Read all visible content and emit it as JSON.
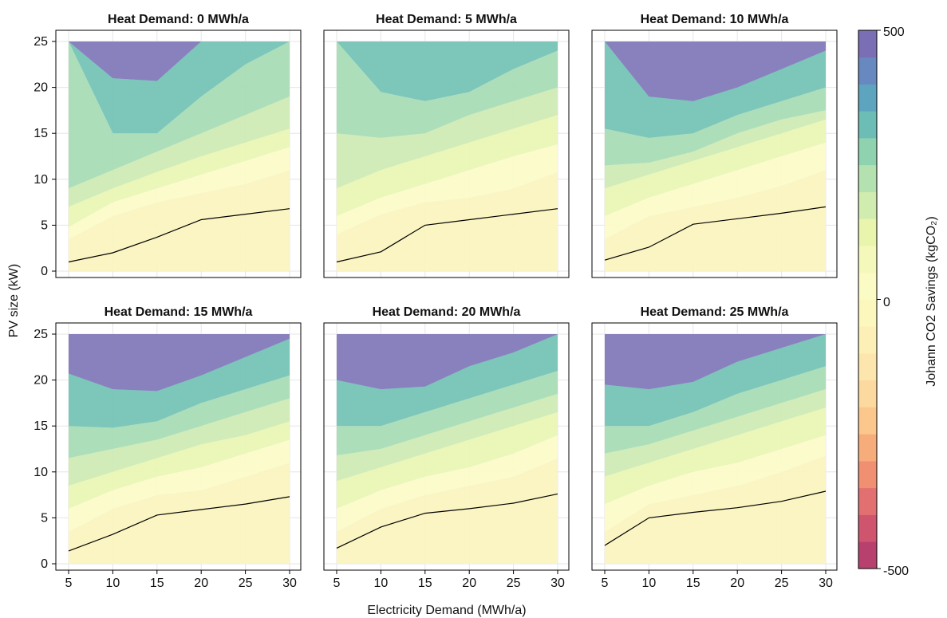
{
  "chart_data": {
    "type": "contour",
    "xlabel": "Electricity Demand (MWh/a)",
    "ylabel": "PV size (kW)",
    "x_ticks": [
      5,
      10,
      15,
      20,
      25,
      30
    ],
    "y_ticks": [
      0,
      5,
      10,
      15,
      20,
      25
    ],
    "xlim": [
      5,
      30
    ],
    "ylim": [
      0,
      25
    ],
    "grid": true,
    "colorbar": {
      "label": "Johann CO2 Savings (kgCO₂)",
      "range": [
        -500,
        500
      ],
      "levels": 20,
      "ticks": [
        "500",
        "0",
        "-500"
      ],
      "colors": [
        "#b8406e",
        "#cf556f",
        "#e27070",
        "#f08f72",
        "#f7ad7b",
        "#fbc78c",
        "#fcd99e",
        "#fde6ad",
        "#fdf0b7",
        "#fcf7bd",
        "#fbfbc6",
        "#f5f8bb",
        "#e9f4ad",
        "#d1ecaf",
        "#b4e1b0",
        "#8fd2b0",
        "#6cbdb5",
        "#5da4be",
        "#6888c0",
        "#7a6fb4"
      ]
    },
    "panels": [
      {
        "title": "Heat Demand: 0 MWh/a",
        "x": [
          5,
          10,
          15,
          20,
          25,
          30
        ],
        "break_even_line": [
          1.0,
          2.0,
          3.7,
          5.6,
          6.2,
          6.8
        ],
        "contours": [
          {
            "level": 50,
            "y": [
              3.5,
              6.0,
              7.5,
              8.5,
              9.5,
              11.0
            ]
          },
          {
            "level": 100,
            "y": [
              4.8,
              7.5,
              9.0,
              10.5,
              12.0,
              13.5
            ]
          },
          {
            "level": 150,
            "y": [
              7.0,
              9.0,
              10.8,
              12.5,
              14.0,
              15.5
            ]
          },
          {
            "level": 200,
            "y": [
              9.0,
              11.0,
              13.0,
              15.0,
              17.0,
              19.0
            ]
          },
          {
            "level": 250,
            "y": [
              25.0,
              15.0,
              15.0,
              19.0,
              22.5,
              25.0
            ]
          },
          {
            "level": 300,
            "y": [
              25.0,
              21.0,
              20.7,
              25.0,
              25.0,
              25.0
            ]
          }
        ]
      },
      {
        "title": "Heat Demand: 5 MWh/a",
        "x": [
          5,
          10,
          15,
          20,
          25,
          30
        ],
        "break_even_line": [
          1.0,
          2.1,
          5.0,
          5.6,
          6.2,
          6.8
        ],
        "contours": [
          {
            "level": 50,
            "y": [
              4.0,
              6.2,
              7.5,
              8.0,
              9.0,
              10.8
            ]
          },
          {
            "level": 100,
            "y": [
              6.0,
              8.0,
              9.5,
              11.0,
              12.5,
              13.8
            ]
          },
          {
            "level": 150,
            "y": [
              9.0,
              11.0,
              12.5,
              14.0,
              15.5,
              17.0
            ]
          },
          {
            "level": 200,
            "y": [
              15.0,
              14.5,
              15.0,
              17.0,
              18.5,
              20.0
            ]
          },
          {
            "level": 250,
            "y": [
              25.0,
              19.5,
              18.5,
              19.5,
              22.0,
              24.0
            ]
          },
          {
            "level": 300,
            "y": [
              25.0,
              25.0,
              25.0,
              25.0,
              25.0,
              25.0
            ]
          }
        ]
      },
      {
        "title": "Heat Demand: 10 MWh/a",
        "x": [
          5,
          10,
          15,
          20,
          25,
          30
        ],
        "break_even_line": [
          1.2,
          2.6,
          5.1,
          5.7,
          6.3,
          7.0
        ],
        "contours": [
          {
            "level": 50,
            "y": [
              3.5,
              6.0,
              7.0,
              8.0,
              9.3,
              11.0
            ]
          },
          {
            "level": 100,
            "y": [
              6.0,
              8.0,
              9.5,
              11.0,
              12.5,
              14.0
            ]
          },
          {
            "level": 150,
            "y": [
              9.0,
              10.5,
              12.0,
              13.5,
              15.0,
              16.5
            ]
          },
          {
            "level": 200,
            "y": [
              11.5,
              11.8,
              13.0,
              15.0,
              16.5,
              17.5
            ]
          },
          {
            "level": 250,
            "y": [
              15.5,
              14.5,
              15.0,
              17.0,
              18.5,
              20.0
            ]
          },
          {
            "level": 300,
            "y": [
              25.0,
              19.0,
              18.5,
              20.0,
              22.0,
              24.0
            ]
          }
        ]
      },
      {
        "title": "Heat Demand: 15 MWh/a",
        "x": [
          5,
          10,
          15,
          20,
          25,
          30
        ],
        "break_even_line": [
          1.4,
          3.2,
          5.3,
          5.9,
          6.5,
          7.3
        ],
        "contours": [
          {
            "level": 50,
            "y": [
              3.5,
              6.0,
              7.5,
              8.0,
              9.5,
              11.0
            ]
          },
          {
            "level": 100,
            "y": [
              6.0,
              8.0,
              9.5,
              10.5,
              12.0,
              13.5
            ]
          },
          {
            "level": 150,
            "y": [
              8.5,
              10.0,
              11.5,
              13.0,
              14.0,
              15.5
            ]
          },
          {
            "level": 200,
            "y": [
              11.5,
              12.5,
              13.5,
              15.0,
              16.5,
              18.0
            ]
          },
          {
            "level": 250,
            "y": [
              15.0,
              14.8,
              15.5,
              17.5,
              19.0,
              20.5
            ]
          },
          {
            "level": 300,
            "y": [
              20.7,
              19.0,
              18.8,
              20.5,
              22.5,
              24.5
            ]
          }
        ]
      },
      {
        "title": "Heat Demand: 20 MWh/a",
        "x": [
          5,
          10,
          15,
          20,
          25,
          30
        ],
        "break_even_line": [
          1.7,
          4.0,
          5.5,
          6.0,
          6.6,
          7.6
        ],
        "contours": [
          {
            "level": 50,
            "y": [
              3.5,
              6.0,
              7.5,
              8.5,
              9.5,
              11.5
            ]
          },
          {
            "level": 100,
            "y": [
              6.0,
              8.0,
              9.5,
              10.5,
              12.0,
              14.0
            ]
          },
          {
            "level": 150,
            "y": [
              9.0,
              10.5,
              12.0,
              13.5,
              15.0,
              16.5
            ]
          },
          {
            "level": 200,
            "y": [
              11.8,
              12.5,
              14.0,
              15.5,
              17.0,
              18.5
            ]
          },
          {
            "level": 250,
            "y": [
              15.0,
              15.0,
              16.5,
              18.0,
              19.5,
              21.0
            ]
          },
          {
            "level": 300,
            "y": [
              20.0,
              19.0,
              19.3,
              21.5,
              23.0,
              25.0
            ]
          }
        ]
      },
      {
        "title": "Heat Demand: 25 MWh/a",
        "x": [
          5,
          10,
          15,
          20,
          25,
          30
        ],
        "break_even_line": [
          2.0,
          5.0,
          5.6,
          6.1,
          6.8,
          7.9
        ],
        "contours": [
          {
            "level": 50,
            "y": [
              3.5,
              6.5,
              7.5,
              8.5,
              10.0,
              11.8
            ]
          },
          {
            "level": 100,
            "y": [
              6.5,
              8.5,
              10.0,
              11.0,
              12.5,
              14.0
            ]
          },
          {
            "level": 150,
            "y": [
              9.5,
              11.0,
              12.5,
              14.0,
              15.5,
              17.0
            ]
          },
          {
            "level": 200,
            "y": [
              12.0,
              13.0,
              14.5,
              16.0,
              17.5,
              19.0
            ]
          },
          {
            "level": 250,
            "y": [
              15.0,
              15.0,
              16.5,
              18.5,
              20.0,
              21.5
            ]
          },
          {
            "level": 300,
            "y": [
              19.5,
              19.0,
              19.8,
              22.0,
              23.5,
              25.0
            ]
          }
        ]
      }
    ]
  }
}
